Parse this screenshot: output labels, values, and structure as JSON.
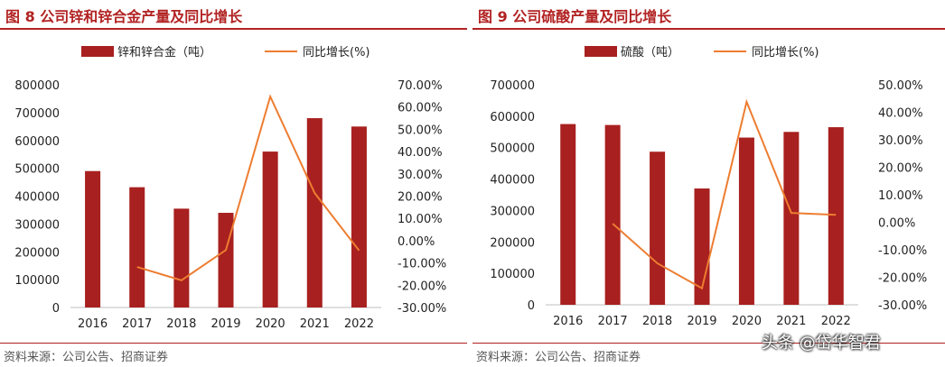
{
  "chart_data": [
    {
      "type": "bar",
      "title": "图 8 公司锌和锌合金产量及同比增长",
      "categories": [
        "2016",
        "2017",
        "2018",
        "2019",
        "2020",
        "2021",
        "2022"
      ],
      "series": [
        {
          "name": "锌和锌合金（吨）",
          "kind": "bar",
          "axis": "left",
          "color": "#a8201f",
          "values": [
            490000,
            432000,
            355000,
            340000,
            560000,
            680000,
            650000
          ]
        },
        {
          "name": "同比增长(%)",
          "kind": "line",
          "axis": "right",
          "color": "#ed7d31",
          "values": [
            null,
            -11.8,
            -17.8,
            -4.2,
            64.7,
            21.4,
            -4.4
          ]
        }
      ],
      "ylim_left": [
        0,
        800000
      ],
      "yticks_left": [
        "0",
        "100000",
        "200000",
        "300000",
        "400000",
        "500000",
        "600000",
        "700000",
        "800000"
      ],
      "ylim_right": [
        -30,
        70
      ],
      "yticks_right": [
        "-30.00%",
        "-20.00%",
        "-10.00%",
        "0.00%",
        "10.00%",
        "20.00%",
        "30.00%",
        "40.00%",
        "50.00%",
        "60.00%",
        "70.00%"
      ],
      "legend_position": "top",
      "source": "资料来源：公司公告、招商证券"
    },
    {
      "type": "bar",
      "title": "图 9 公司硫酸产量及同比增长",
      "categories": [
        "2016",
        "2017",
        "2018",
        "2019",
        "2020",
        "2021",
        "2022"
      ],
      "series": [
        {
          "name": "硫酸（吨）",
          "kind": "bar",
          "axis": "left",
          "color": "#a8201f",
          "values": [
            575000,
            572000,
            487000,
            370000,
            532000,
            550000,
            565000
          ]
        },
        {
          "name": "同比增长(%)",
          "kind": "line",
          "axis": "right",
          "color": "#ed7d31",
          "values": [
            null,
            -0.5,
            -14.9,
            -24.0,
            43.8,
            3.4,
            2.7
          ]
        }
      ],
      "ylim_left": [
        0,
        700000
      ],
      "yticks_left": [
        "0",
        "100000",
        "200000",
        "300000",
        "400000",
        "500000",
        "600000",
        "700000"
      ],
      "ylim_right": [
        -30,
        50
      ],
      "yticks_right": [
        "-30.00%",
        "-20.00%",
        "-10.00%",
        "0.00%",
        "10.00%",
        "20.00%",
        "30.00%",
        "40.00%",
        "50.00%"
      ],
      "legend_position": "top",
      "source": "资料来源：公司公告、招商证券"
    }
  ],
  "watermark": "头条 @岱华智君"
}
